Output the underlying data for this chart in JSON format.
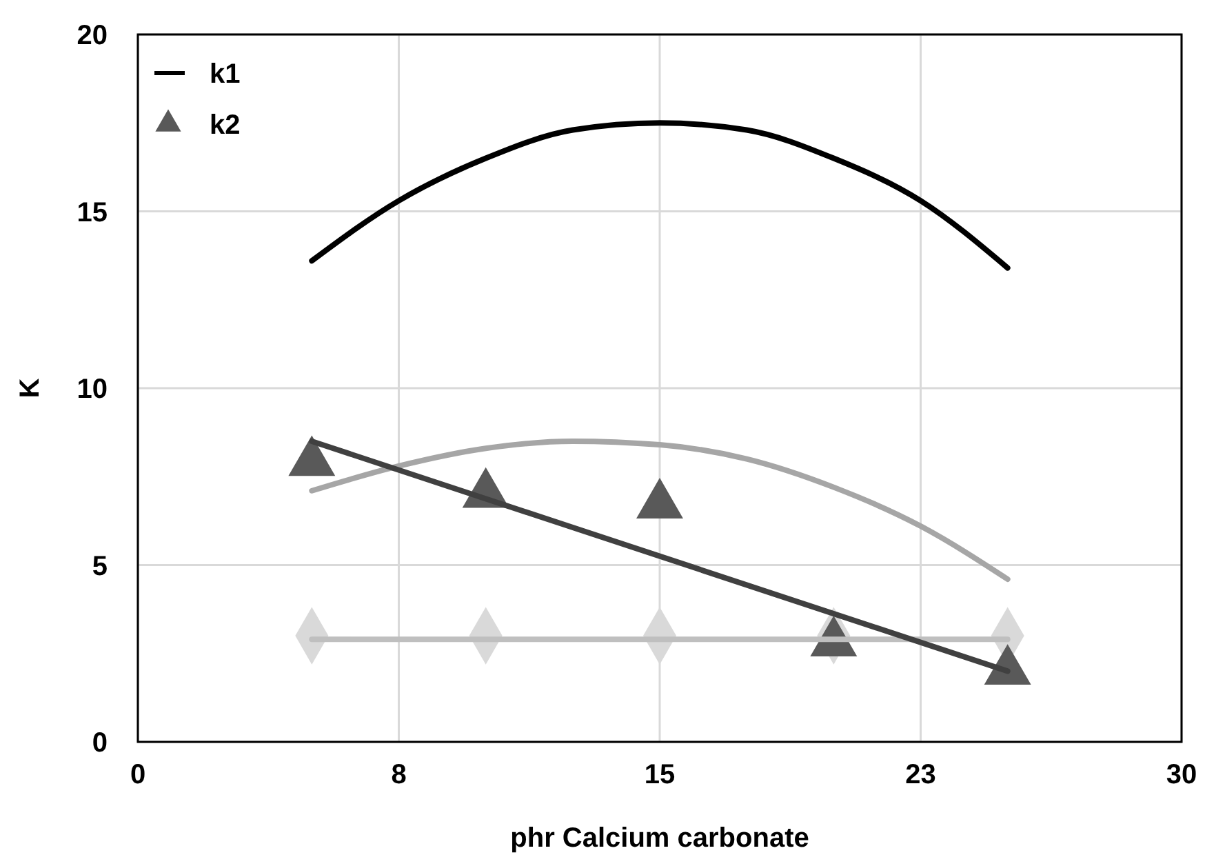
{
  "chart_data": {
    "type": "scatter",
    "xlabel": "phr Calcium carbonate",
    "ylabel": "K",
    "xlim": [
      0,
      30
    ],
    "xticks": [
      0,
      {
        "value": 7.5,
        "label": "8"
      },
      15,
      {
        "value": 22.5,
        "label": "23"
      },
      30
    ],
    "ylim": [
      0,
      20
    ],
    "yticks": [
      0,
      5,
      10,
      15,
      20
    ],
    "grid": true,
    "legend": "top left",
    "series": [
      {
        "name": "k1",
        "type": "line",
        "marker": "none",
        "color": "#000000",
        "x": [
          5,
          7.5,
          10,
          12.5,
          15,
          17.5,
          20,
          22.5,
          25
        ],
        "values": [
          13.6,
          15.3,
          16.5,
          17.3,
          17.5,
          17.3,
          16.5,
          15.3,
          13.4
        ]
      },
      {
        "type": "line",
        "marker": "none",
        "color": "#a6a6a6",
        "x": [
          5,
          7.5,
          10,
          12.5,
          15,
          17.5,
          20,
          22.5,
          25
        ],
        "values": [
          7.1,
          7.8,
          8.3,
          8.5,
          8.4,
          8.0,
          7.2,
          6.1,
          4.6
        ]
      },
      {
        "type": "line",
        "marker": "none",
        "color": "#bfbfbf",
        "x": [
          5,
          25
        ],
        "values": [
          2.9,
          2.9
        ]
      },
      {
        "type": "scatter",
        "marker": "diamond",
        "color": "#d9d9d9",
        "x": [
          5,
          10,
          15,
          20,
          25
        ],
        "values": [
          3,
          3,
          3,
          3,
          3
        ]
      },
      {
        "type": "line",
        "marker": "none",
        "color": "#404040",
        "x": [
          5,
          25
        ],
        "values": [
          8.5,
          2.0
        ]
      },
      {
        "name": "k2",
        "type": "scatter",
        "marker": "triangle",
        "color": "#595959",
        "x": [
          5,
          10,
          15,
          20,
          25
        ],
        "values": [
          7.9,
          7.0,
          6.7,
          2.8,
          2.0
        ]
      }
    ]
  }
}
